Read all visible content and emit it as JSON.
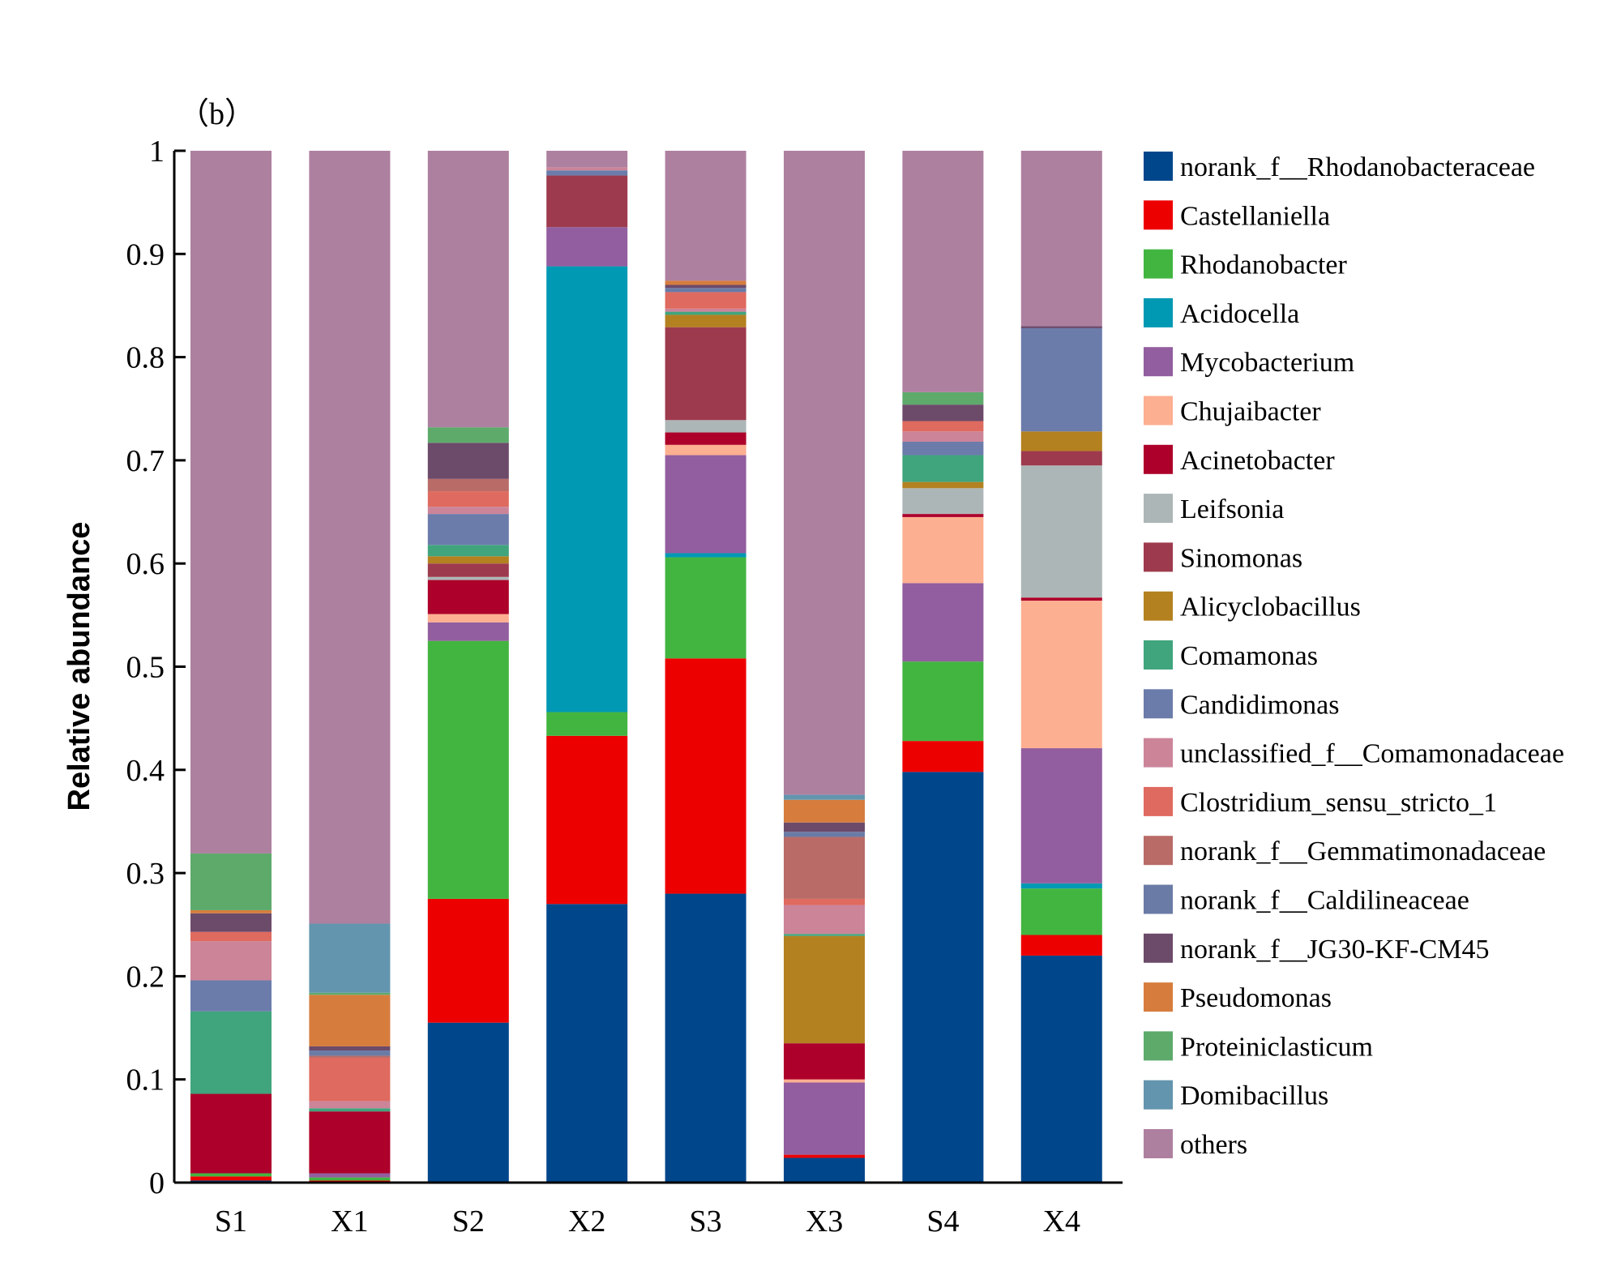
{
  "chart_data": {
    "type": "bar",
    "stacked": true,
    "panel_label": "（b）",
    "ylabel": "Relative abundance",
    "xlabel": "",
    "ylim": [
      0,
      1
    ],
    "yticks": [
      "0",
      "0.1",
      "0.2",
      "0.3",
      "0.4",
      "0.5",
      "0.6",
      "0.7",
      "0.8",
      "0.9",
      "1"
    ],
    "grid": false,
    "legend_position": "right",
    "categories": [
      "S1",
      "X1",
      "S2",
      "X2",
      "S3",
      "X3",
      "S4",
      "X4"
    ],
    "series": [
      {
        "name": "norank_f__Rhodanobacteraceae",
        "color": "#00468b",
        "values": [
          0.002,
          0.001,
          0.155,
          0.27,
          0.28,
          0.024,
          0.398,
          0.22
        ]
      },
      {
        "name": "Castellaniella",
        "color": "#ed0000",
        "values": [
          0.004,
          0.001,
          0.12,
          0.163,
          0.228,
          0.003,
          0.03,
          0.02
        ]
      },
      {
        "name": "Rhodanobacter",
        "color": "#42b540",
        "values": [
          0.003,
          0.003,
          0.25,
          0.023,
          0.098,
          0.0,
          0.077,
          0.045
        ]
      },
      {
        "name": "Acidocella",
        "color": "#0099b4",
        "values": [
          0.0,
          0.0,
          0.0,
          0.432,
          0.004,
          0.0,
          0.0,
          0.005
        ]
      },
      {
        "name": "Mycobacterium",
        "color": "#925e9f",
        "values": [
          0.0,
          0.004,
          0.018,
          0.038,
          0.095,
          0.07,
          0.076,
          0.131
        ]
      },
      {
        "name": "Chujaibacter",
        "color": "#fdaf91",
        "values": [
          0.0,
          0.0,
          0.008,
          0.0,
          0.01,
          0.003,
          0.064,
          0.143
        ]
      },
      {
        "name": "Acinetobacter",
        "color": "#ad002a",
        "values": [
          0.077,
          0.06,
          0.033,
          0.0,
          0.012,
          0.035,
          0.003,
          0.003
        ]
      },
      {
        "name": "Leifsonia",
        "color": "#adb6b6",
        "values": [
          0.0,
          0.0,
          0.003,
          0.0,
          0.012,
          0.0,
          0.025,
          0.128
        ]
      },
      {
        "name": "Sinomonas",
        "color": "#9e3a4e",
        "values": [
          0.0,
          0.0,
          0.013,
          0.05,
          0.09,
          0.0,
          0.0,
          0.014
        ]
      },
      {
        "name": "Alicyclobacillus",
        "color": "#b38120",
        "values": [
          0.0,
          0.0,
          0.007,
          0.0,
          0.012,
          0.104,
          0.006,
          0.019
        ]
      },
      {
        "name": "Comamonas",
        "color": "#40a47d",
        "values": [
          0.08,
          0.003,
          0.011,
          0.0,
          0.003,
          0.002,
          0.026,
          0.0
        ]
      },
      {
        "name": "Candidimonas",
        "color": "#6b7cab",
        "values": [
          0.03,
          0.0,
          0.03,
          0.005,
          0.0,
          0.0,
          0.013,
          0.1
        ]
      },
      {
        "name": "unclassified_f__Comamonadaceae",
        "color": "#cc8499",
        "values": [
          0.038,
          0.007,
          0.007,
          0.003,
          0.003,
          0.028,
          0.01,
          0.0
        ]
      },
      {
        "name": "Clostridium_sensu_stricto_1",
        "color": "#df6a5f",
        "values": [
          0.009,
          0.042,
          0.015,
          0.0,
          0.016,
          0.006,
          0.01,
          0.0
        ]
      },
      {
        "name": "norank_f__Gemmatimonadaceae",
        "color": "#b96b67",
        "values": [
          0.0,
          0.002,
          0.012,
          0.0,
          0.0,
          0.06,
          0.0,
          0.0
        ]
      },
      {
        "name": "norank_f__Caldilineaceae",
        "color": "#6a7ba6",
        "values": [
          0.0,
          0.005,
          0.0,
          0.0,
          0.004,
          0.005,
          0.0,
          0.0
        ]
      },
      {
        "name": "norank_f__JG30-KF-CM45",
        "color": "#6c4a6a",
        "values": [
          0.018,
          0.004,
          0.035,
          0.0,
          0.003,
          0.009,
          0.016,
          0.002
        ]
      },
      {
        "name": "Pseudomonas",
        "color": "#d67d3e",
        "values": [
          0.003,
          0.05,
          0.0,
          0.0,
          0.004,
          0.022,
          0.0,
          0.0
        ]
      },
      {
        "name": "Proteiniclasticum",
        "color": "#5daa6b",
        "values": [
          0.055,
          0.002,
          0.015,
          0.0,
          0.0,
          0.0,
          0.012,
          0.0
        ]
      },
      {
        "name": "Domibacillus",
        "color": "#6495ae",
        "values": [
          0.0,
          0.067,
          0.0,
          0.0,
          0.0,
          0.005,
          0.0,
          0.0
        ]
      },
      {
        "name": "others",
        "color": "#ae80a0",
        "values": [
          0.681,
          0.749,
          0.268,
          0.016,
          0.126,
          0.624,
          0.234,
          0.17
        ]
      }
    ]
  }
}
